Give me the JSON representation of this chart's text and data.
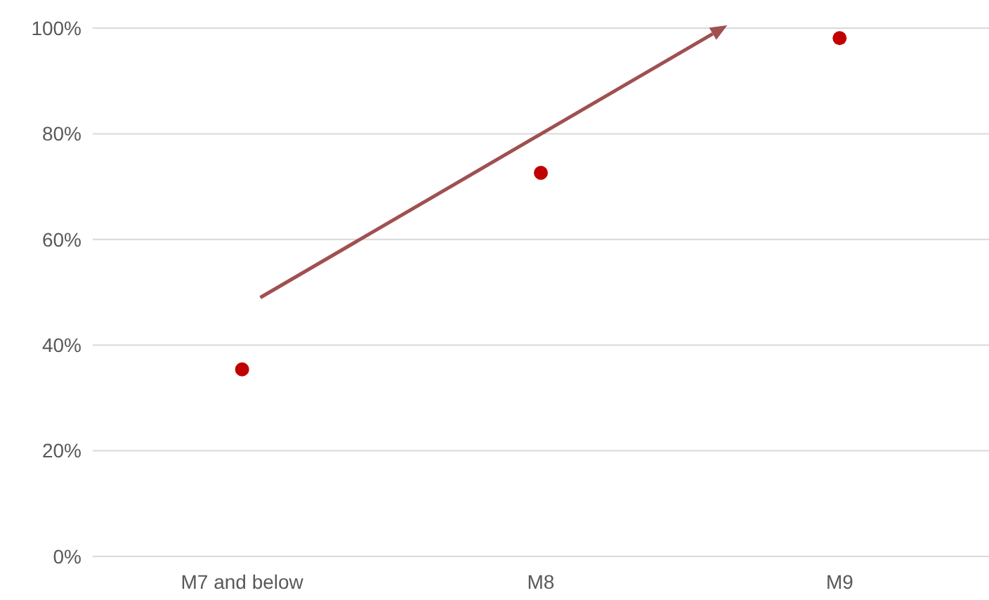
{
  "chart_data": {
    "type": "scatter",
    "categories": [
      "M7 and below",
      "M8",
      "M9"
    ],
    "series": [
      {
        "color": "#c00000",
        "values": [
          0.354,
          0.726,
          0.981
        ]
      }
    ],
    "ylim": [
      0,
      1
    ],
    "yticks": [
      {
        "value": 0,
        "label": "0%"
      },
      {
        "value": 0.2,
        "label": "20%"
      },
      {
        "value": 0.4,
        "label": "40%"
      },
      {
        "value": 0.6,
        "label": "60%"
      },
      {
        "value": 0.8,
        "label": "80%"
      },
      {
        "value": 1,
        "label": "100%"
      }
    ],
    "grid": "y",
    "marker": "circle"
  }
}
